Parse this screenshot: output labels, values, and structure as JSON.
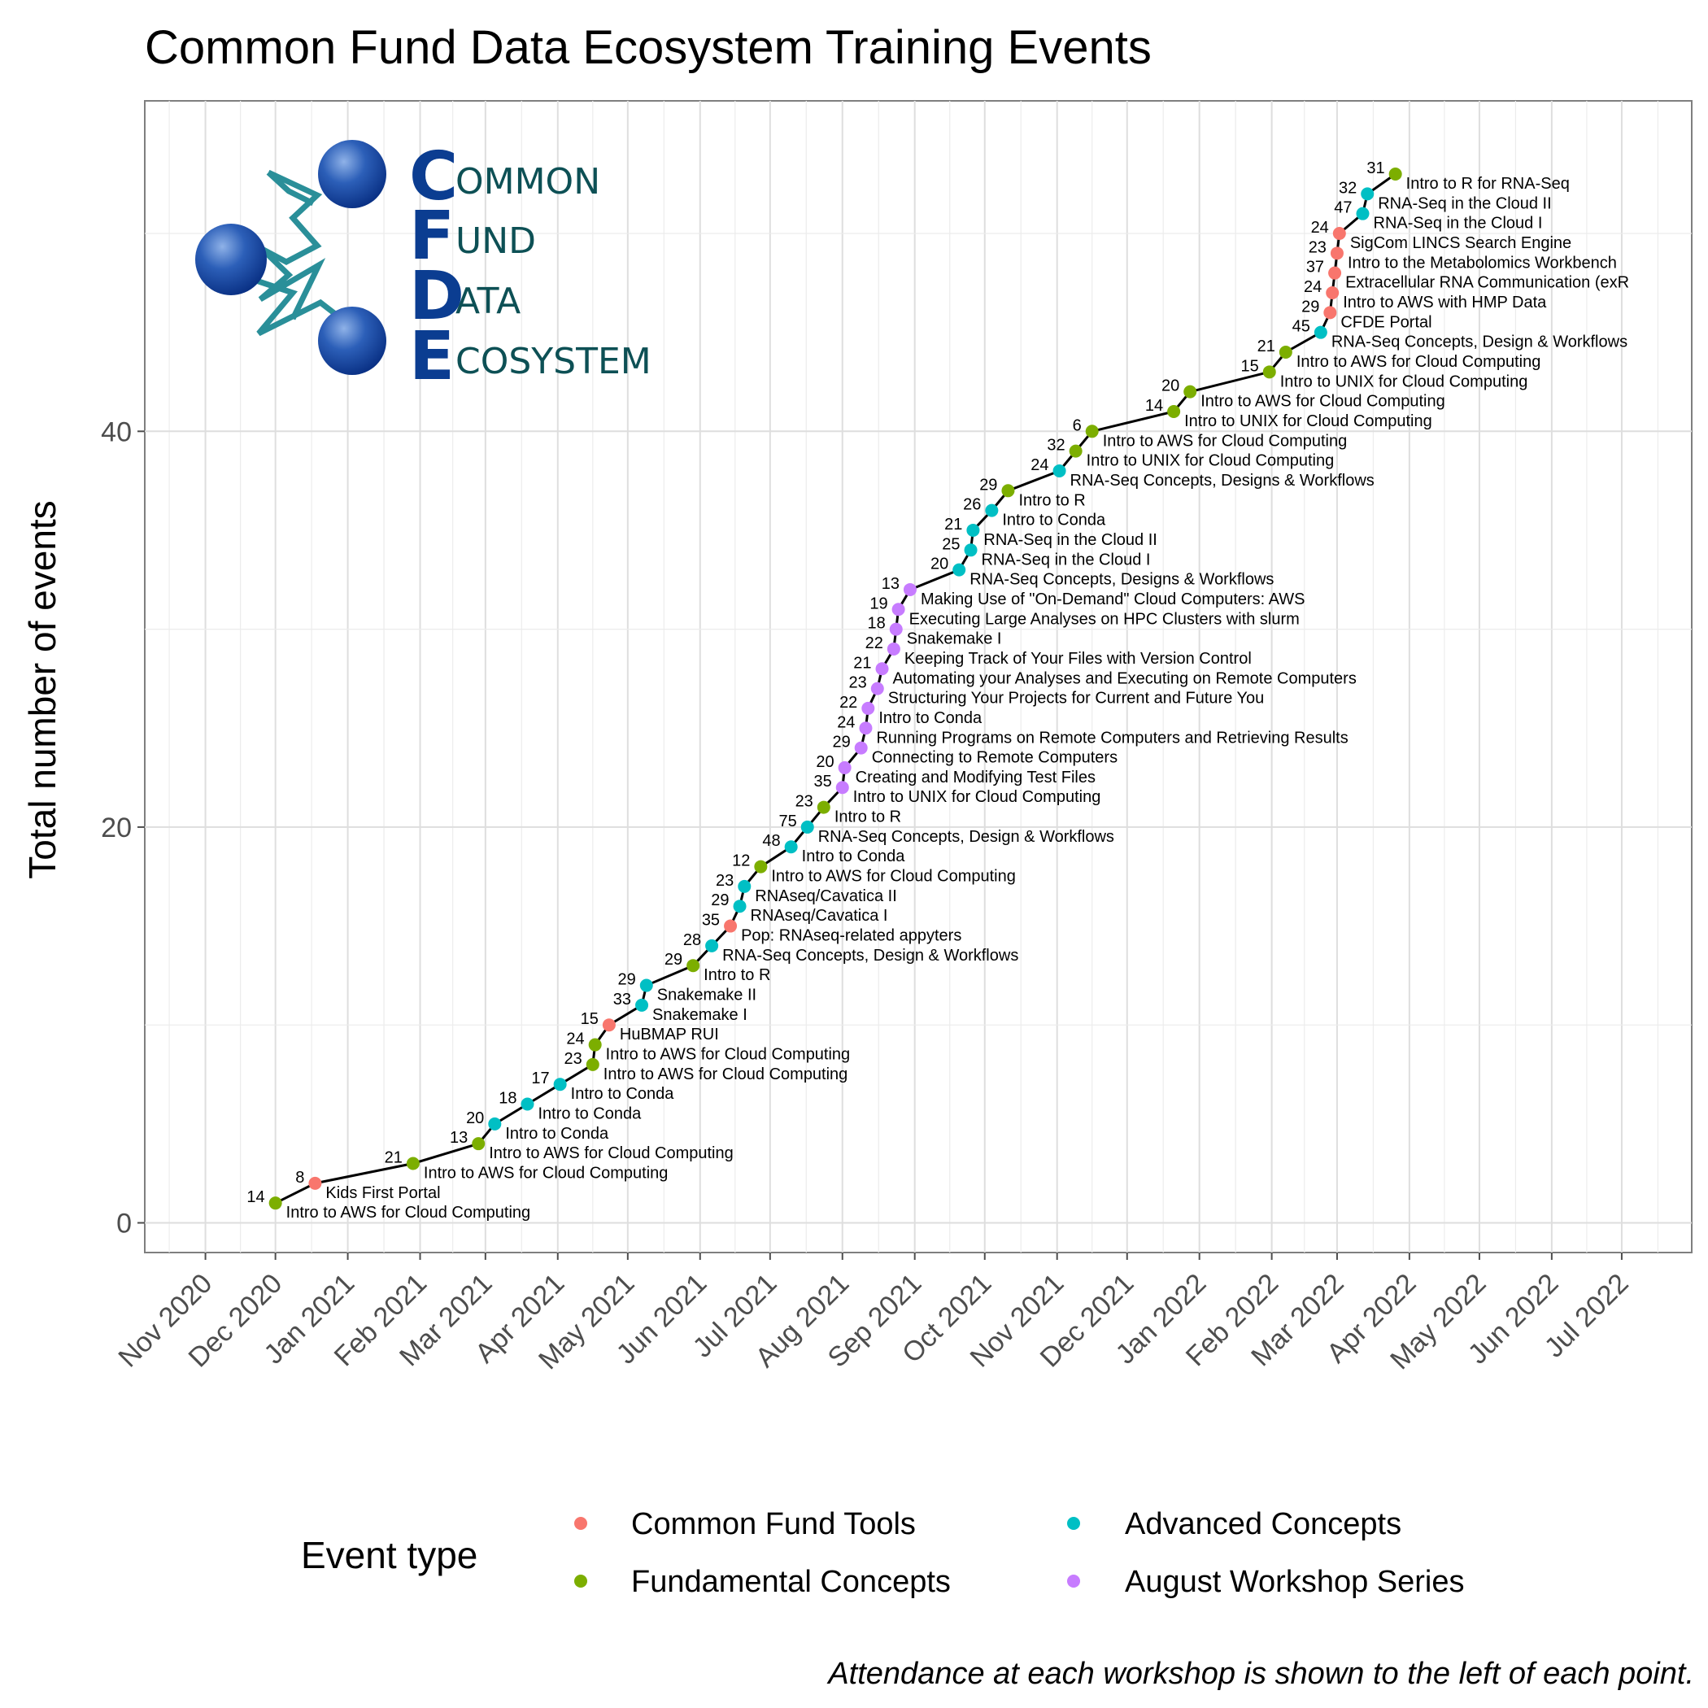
{
  "chart_data": {
    "type": "line",
    "title": "Common Fund Data Ecosystem Training Events",
    "xlabel": "",
    "ylabel": "Total number of events",
    "ylim": [
      -1.5,
      56.7
    ],
    "xlim": [
      "2020-10-06",
      "2022-07-31"
    ],
    "y_ticks": [
      0,
      20,
      40
    ],
    "x_ticks": [
      "Nov 2020",
      "Dec 2020",
      "Jan 2021",
      "Feb 2021",
      "Mar 2021",
      "Apr 2021",
      "May 2021",
      "Jun 2021",
      "Jul 2021",
      "Aug 2021",
      "Sep 2021",
      "Oct 2021",
      "Nov 2021",
      "Dec 2021",
      "Jan 2022",
      "Feb 2022",
      "Mar 2022",
      "Apr 2022",
      "May 2022",
      "Jun 2022",
      "Jul 2022"
    ],
    "grid": true,
    "legend_position": "bottom",
    "legend": {
      "title": "Event type",
      "entries": [
        {
          "name": "Common Fund Tools",
          "color": "#F8766D"
        },
        {
          "name": "Fundamental Concepts",
          "color": "#7CAE00"
        },
        {
          "name": "Advanced Concepts",
          "color": "#00BFC4"
        },
        {
          "name": "August Workshop Series",
          "color": "#C77CFF"
        }
      ]
    },
    "caption": "Attendance at each workshop is shown to the left of each point.",
    "series": [
      {
        "points": [
          {
            "date": "2020-12-01",
            "total": 1,
            "attendance": "14",
            "label": "Intro to AWS for Cloud Computing",
            "type": "Fundamental Concepts"
          },
          {
            "date": "2020-12-18",
            "total": 2,
            "attendance": "8",
            "label": "Kids First Portal",
            "type": "Common Fund Tools"
          },
          {
            "date": "2021-01-29",
            "total": 3,
            "attendance": "21",
            "label": "Intro to AWS for Cloud Computing",
            "type": "Fundamental Concepts"
          },
          {
            "date": "2021-02-26",
            "total": 4,
            "attendance": "13",
            "label": "Intro to AWS for Cloud Computing",
            "type": "Fundamental Concepts"
          },
          {
            "date": "2021-03-05",
            "total": 5,
            "attendance": "20",
            "label": "Intro to Conda",
            "type": "Advanced Concepts"
          },
          {
            "date": "2021-03-19",
            "total": 6,
            "attendance": "18",
            "label": "Intro to Conda",
            "type": "Advanced Concepts"
          },
          {
            "date": "2021-04-02",
            "total": 7,
            "attendance": "17",
            "label": "Intro to Conda",
            "type": "Advanced Concepts"
          },
          {
            "date": "2021-04-16",
            "total": 8,
            "attendance": "23",
            "label": "Intro to AWS for Cloud Computing",
            "type": "Fundamental Concepts"
          },
          {
            "date": "2021-04-17",
            "total": 9,
            "attendance": "24",
            "label": "Intro to AWS for Cloud Computing",
            "type": "Fundamental Concepts"
          },
          {
            "date": "2021-04-23",
            "total": 10,
            "attendance": "15",
            "label": "HuBMAP RUI",
            "type": "Common Fund Tools"
          },
          {
            "date": "2021-05-07",
            "total": 11,
            "attendance": "33",
            "label": "Snakemake I",
            "type": "Advanced Concepts"
          },
          {
            "date": "2021-05-09",
            "total": 12,
            "attendance": "29",
            "label": "Snakemake II",
            "type": "Advanced Concepts"
          },
          {
            "date": "2021-05-29",
            "total": 13,
            "attendance": "29",
            "label": "Intro to R",
            "type": "Fundamental Concepts"
          },
          {
            "date": "2021-06-06",
            "total": 14,
            "attendance": "28",
            "label": "RNA-Seq Concepts, Design & Workflows",
            "type": "Advanced Concepts"
          },
          {
            "date": "2021-06-14",
            "total": 15,
            "attendance": "35",
            "label": "Pop: RNAseq-related appyters",
            "type": "Common Fund Tools"
          },
          {
            "date": "2021-06-18",
            "total": 16,
            "attendance": "29",
            "label": "RNAseq/Cavatica I",
            "type": "Advanced Concepts"
          },
          {
            "date": "2021-06-20",
            "total": 17,
            "attendance": "23",
            "label": "RNAseq/Cavatica II",
            "type": "Advanced Concepts"
          },
          {
            "date": "2021-06-27",
            "total": 18,
            "attendance": "12",
            "label": "Intro to AWS for Cloud Computing",
            "type": "Fundamental Concepts"
          },
          {
            "date": "2021-07-10",
            "total": 19,
            "attendance": "48",
            "label": "Intro to Conda",
            "type": "Advanced Concepts"
          },
          {
            "date": "2021-07-17",
            "total": 20,
            "attendance": "75",
            "label": "RNA-Seq Concepts, Design & Workflows",
            "type": "Advanced Concepts"
          },
          {
            "date": "2021-07-24",
            "total": 21,
            "attendance": "23",
            "label": "Intro to R",
            "type": "Fundamental Concepts"
          },
          {
            "date": "2021-08-01",
            "total": 22,
            "attendance": "35",
            "label": "Intro to UNIX for Cloud Computing",
            "type": "August Workshop Series"
          },
          {
            "date": "2021-08-02",
            "total": 23,
            "attendance": "20",
            "label": "Creating and Modifying Test Files",
            "type": "August Workshop Series"
          },
          {
            "date": "2021-08-09",
            "total": 24,
            "attendance": "29",
            "label": "Connecting to Remote Computers",
            "type": "August Workshop Series"
          },
          {
            "date": "2021-08-11",
            "total": 25,
            "attendance": "24",
            "label": "Running Programs on Remote Computers and Retrieving Results",
            "type": "August Workshop Series"
          },
          {
            "date": "2021-08-12",
            "total": 26,
            "attendance": "22",
            "label": "Intro to Conda",
            "type": "August Workshop Series"
          },
          {
            "date": "2021-08-16",
            "total": 27,
            "attendance": "23",
            "label": "Structuring Your Projects for Current and Future You",
            "type": "August Workshop Series"
          },
          {
            "date": "2021-08-18",
            "total": 28,
            "attendance": "21",
            "label": "Automating your Analyses and Executing on Remote Computers",
            "type": "August Workshop Series"
          },
          {
            "date": "2021-08-23",
            "total": 29,
            "attendance": "22",
            "label": "Keeping Track of Your Files with Version Control",
            "type": "August Workshop Series"
          },
          {
            "date": "2021-08-24",
            "total": 30,
            "attendance": "18",
            "label": "Snakemake I",
            "type": "August Workshop Series"
          },
          {
            "date": "2021-08-25",
            "total": 31,
            "attendance": "19",
            "label": "Executing Large Analyses on HPC Clusters with slurm",
            "type": "August Workshop Series"
          },
          {
            "date": "2021-08-30",
            "total": 32,
            "attendance": "13",
            "label": "Making Use of \"On-Demand\" Cloud Computers: AWS",
            "type": "August Workshop Series"
          },
          {
            "date": "2021-09-20",
            "total": 33,
            "attendance": "20",
            "label": "RNA-Seq Concepts, Designs & Workflows",
            "type": "Advanced Concepts"
          },
          {
            "date": "2021-09-25",
            "total": 34,
            "attendance": "25",
            "label": "RNA-Seq in the Cloud I",
            "type": "Advanced Concepts"
          },
          {
            "date": "2021-09-26",
            "total": 35,
            "attendance": "21",
            "label": "RNA-Seq in the Cloud II",
            "type": "Advanced Concepts"
          },
          {
            "date": "2021-10-04",
            "total": 36,
            "attendance": "26",
            "label": "Intro to Conda",
            "type": "Advanced Concepts"
          },
          {
            "date": "2021-10-11",
            "total": 37,
            "attendance": "29",
            "label": "Intro to R",
            "type": "Fundamental Concepts"
          },
          {
            "date": "2021-11-02",
            "total": 38,
            "attendance": "24",
            "label": "RNA-Seq Concepts, Designs & Workflows",
            "type": "Advanced Concepts"
          },
          {
            "date": "2021-11-09",
            "total": 39,
            "attendance": "32",
            "label": "Intro to UNIX for Cloud Computing",
            "type": "Fundamental Concepts"
          },
          {
            "date": "2021-11-16",
            "total": 40,
            "attendance": "6",
            "label": "Intro to AWS for Cloud Computing",
            "type": "Fundamental Concepts"
          },
          {
            "date": "2021-12-21",
            "total": 41,
            "attendance": "14",
            "label": "Intro to UNIX for Cloud Computing",
            "type": "Fundamental Concepts"
          },
          {
            "date": "2021-12-28",
            "total": 42,
            "attendance": "20",
            "label": "Intro to AWS for Cloud Computing",
            "type": "Fundamental Concepts"
          },
          {
            "date": "2022-01-31",
            "total": 43,
            "attendance": "15",
            "label": "Intro to UNIX for Cloud Computing",
            "type": "Fundamental Concepts"
          },
          {
            "date": "2022-02-07",
            "total": 44,
            "attendance": "21",
            "label": "Intro to AWS for Cloud Computing",
            "type": "Fundamental Concepts"
          },
          {
            "date": "2022-02-22",
            "total": 45,
            "attendance": "45",
            "label": "RNA-Seq Concepts, Design & Workflows",
            "type": "Advanced Concepts"
          },
          {
            "date": "2022-02-26",
            "total": 46,
            "attendance": "29",
            "label": "CFDE Portal",
            "type": "Common Fund Tools"
          },
          {
            "date": "2022-02-27",
            "total": 47,
            "attendance": "24",
            "label": "Intro to AWS with HMP Data",
            "type": "Common Fund Tools"
          },
          {
            "date": "2022-02-28",
            "total": 48,
            "attendance": "37",
            "label": "Extracellular RNA Communication (exR",
            "type": "Common Fund Tools"
          },
          {
            "date": "2022-03-01",
            "total": 49,
            "attendance": "23",
            "label": "Intro to the Metabolomics Workbench",
            "type": "Common Fund Tools"
          },
          {
            "date": "2022-03-02",
            "total": 50,
            "attendance": "24",
            "label": "SigCom LINCS Search Engine",
            "type": "Common Fund Tools"
          },
          {
            "date": "2022-03-12",
            "total": 51,
            "attendance": "47",
            "label": "RNA-Seq in the Cloud I",
            "type": "Advanced Concepts"
          },
          {
            "date": "2022-03-14",
            "total": 52,
            "attendance": "32",
            "label": "RNA-Seq in the Cloud II",
            "type": "Advanced Concepts"
          },
          {
            "date": "2022-03-26",
            "total": 53,
            "attendance": "31",
            "label": "Intro to R for RNA-Seq",
            "type": "Fundamental Concepts"
          }
        ]
      }
    ]
  },
  "logo": {
    "letters": [
      "C",
      "F",
      "D",
      "E"
    ],
    "words": [
      "OMMON",
      "UND",
      "ATA",
      "COSYSTEM"
    ]
  }
}
